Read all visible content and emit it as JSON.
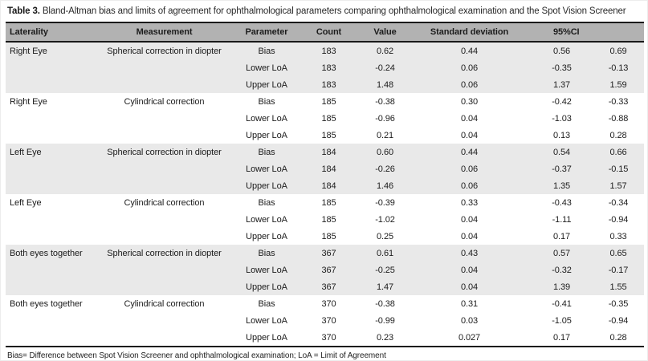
{
  "title": {
    "label": "Table 3.",
    "text": "Bland-Altman bias and limits of agreement for ophthalmological parameters comparing ophthalmological examination and the Spot Vision Screener"
  },
  "table": {
    "headers": {
      "laterality": "Laterality",
      "measurement": "Measurement",
      "parameter": "Parameter",
      "count": "Count",
      "value": "Value",
      "sd": "Standard deviation",
      "ci": "95%CI"
    },
    "groups": [
      {
        "laterality": "Right Eye",
        "measurement": "Spherical correction in diopter",
        "shaded": true,
        "rows": [
          {
            "parameter": "Bias",
            "count": "183",
            "value": "0.62",
            "sd": "0.44",
            "ci_low": "0.56",
            "ci_high": "0.69",
            "emphasis": "ci_high"
          },
          {
            "parameter": "Lower LoA",
            "count": "183",
            "value": "-0.24",
            "sd": "0.06",
            "ci_low": "-0.35",
            "ci_high": "-0.13"
          },
          {
            "parameter": "Upper LoA",
            "count": "183",
            "value": "1.48",
            "sd": "0.06",
            "ci_low": "1.37",
            "ci_high": "1.59"
          }
        ]
      },
      {
        "laterality": "Right Eye",
        "measurement": "Cylindrical correction",
        "shaded": false,
        "rows": [
          {
            "parameter": "Bias",
            "count": "185",
            "value": "-0.38",
            "sd": "0.30",
            "ci_low": "-0.42",
            "ci_high": "-0.33"
          },
          {
            "parameter": "Lower LoA",
            "count": "185",
            "value": "-0.96",
            "sd": "0.04",
            "ci_low": "-1.03",
            "ci_high": "-0.88"
          },
          {
            "parameter": "Upper LoA",
            "count": "185",
            "value": "0.21",
            "sd": "0.04",
            "ci_low": "0.13",
            "ci_high": "0.28"
          }
        ]
      },
      {
        "laterality": "Left Eye",
        "measurement": "Spherical correction in diopter",
        "shaded": true,
        "rows": [
          {
            "parameter": "Bias",
            "count": "184",
            "value": "0.60",
            "sd": "0.44",
            "ci_low": "0.54",
            "ci_high": "0.66",
            "emphasis": "ci_high"
          },
          {
            "parameter": "Lower LoA",
            "count": "184",
            "value": "-0.26",
            "sd": "0.06",
            "ci_low": "-0.37",
            "ci_high": "-0.15"
          },
          {
            "parameter": "Upper LoA",
            "count": "184",
            "value": "1.46",
            "sd": "0.06",
            "ci_low": "1.35",
            "ci_high": "1.57"
          }
        ]
      },
      {
        "laterality": "Left Eye",
        "measurement": "Cylindrical correction",
        "shaded": false,
        "rows": [
          {
            "parameter": "Bias",
            "count": "185",
            "value": "-0.39",
            "sd": "0.33",
            "ci_low": "-0.43",
            "ci_high": "-0.34"
          },
          {
            "parameter": "Lower LoA",
            "count": "185",
            "value": "-1.02",
            "sd": "0.04",
            "ci_low": "-1.11",
            "ci_high": "-0.94"
          },
          {
            "parameter": "Upper LoA",
            "count": "185",
            "value": "0.25",
            "sd": "0.04",
            "ci_low": "0.17",
            "ci_high": "0.33"
          }
        ]
      },
      {
        "laterality": "Both eyes together",
        "measurement": "Spherical correction in diopter",
        "shaded": true,
        "rows": [
          {
            "parameter": "Bias",
            "count": "367",
            "value": "0.61",
            "sd": "0.43",
            "ci_low": "0.57",
            "ci_high": "0.65",
            "emphasis": "ci_high"
          },
          {
            "parameter": "Lower LoA",
            "count": "367",
            "value": "-0.25",
            "sd": "0.04",
            "ci_low": "-0.32",
            "ci_high": "-0.17"
          },
          {
            "parameter": "Upper LoA",
            "count": "367",
            "value": "1.47",
            "sd": "0.04",
            "ci_low": "1.39",
            "ci_high": "1.55"
          }
        ]
      },
      {
        "laterality": "Both eyes together",
        "measurement": "Cylindrical correction",
        "shaded": false,
        "rows": [
          {
            "parameter": "Bias",
            "count": "370",
            "value": "-0.38",
            "sd": "0.31",
            "ci_low": "-0.41",
            "ci_high": "-0.35"
          },
          {
            "parameter": "Lower LoA",
            "count": "370",
            "value": "-0.99",
            "sd": "0.03",
            "ci_low": "-1.05",
            "ci_high": "-0.94"
          },
          {
            "parameter": "Upper LoA",
            "count": "370",
            "value": "0.23",
            "sd": "0.027",
            "ci_low": "0.17",
            "ci_high": "0.28",
            "emphasis": "ci_high"
          }
        ]
      }
    ]
  },
  "footnote": "Bias= Difference between Spot Vision Screener and ophthalmological examination; LoA = Limit of Agreement",
  "colors": {
    "header_bg": "#b2b2b2",
    "shaded_row_bg": "#e9e9e9",
    "rule": "#1a1a1a",
    "text": "#1c1c1c"
  }
}
